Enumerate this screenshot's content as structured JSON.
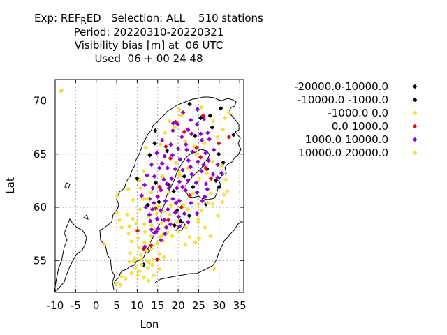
{
  "title": {
    "line1_pre": "Exp: REF",
    "line1_sub": "R",
    "line1_post": "ED   Selection: ALL    510 stations",
    "line2": "Period: 20220310-20220321",
    "line3": "Visibility bias [m] at  06 UTC",
    "line4": "Used  06 + 00 24 48"
  },
  "chart_data": {
    "type": "scatter",
    "title": "Visibility bias [m] at  06 UTC",
    "xlabel": "Lon",
    "ylabel": "Lat",
    "xlim": [
      -10,
      36
    ],
    "ylim": [
      52,
      72
    ],
    "xticks": [
      -10,
      -5,
      0,
      5,
      10,
      15,
      20,
      25,
      30,
      35
    ],
    "yticks": [
      55,
      60,
      65,
      70
    ],
    "xtick_labels": [
      "-10",
      "-5",
      "0",
      "5",
      "10",
      "15",
      "20",
      "25",
      "30",
      "35"
    ],
    "ytick_labels": [
      "55",
      "60",
      "65",
      "70"
    ],
    "grid": true,
    "legend_position": "right",
    "series": [
      {
        "name": "-20000.0-10000.0",
        "color": "#000000",
        "points": [
          [
            25.5,
            68.4
          ],
          [
            24.1,
            66.7
          ],
          [
            28.3,
            67.5
          ],
          [
            27.0,
            63.6
          ],
          [
            29.9,
            65.0
          ],
          [
            14.3,
            66.0
          ],
          [
            10.0,
            62.7
          ],
          [
            31.0,
            64.2
          ],
          [
            33.5,
            66.8
          ],
          [
            14.4,
            67.2
          ],
          [
            12.6,
            60.2
          ]
        ]
      },
      {
        "name": "-10000.0 -1000.0",
        "color": "#000000",
        "points": [
          [
            30.4,
            69.3
          ],
          [
            22.8,
            69.7
          ],
          [
            27.8,
            68.6
          ],
          [
            17.3,
            65.3
          ],
          [
            13.1,
            64.9
          ],
          [
            21.5,
            62.9
          ],
          [
            17.7,
            62.1
          ],
          [
            18.9,
            61.5
          ],
          [
            23.6,
            61.9
          ],
          [
            29.2,
            62.5
          ],
          [
            15.3,
            60.5
          ],
          [
            19.8,
            59.7
          ],
          [
            26.8,
            60.3
          ],
          [
            20.6,
            58.7
          ],
          [
            11.6,
            54.6
          ],
          [
            12.7,
            55.9
          ],
          [
            19.1,
            58.3
          ],
          [
            22.7,
            59.2
          ],
          [
            30.0,
            61.9
          ],
          [
            14.5,
            62.3
          ]
        ]
      },
      {
        "name": "-1000.0 0.0",
        "color": "#f0e040",
        "points": [
          [
            -8.6,
            70.9
          ],
          [
            -8.4,
            71.0
          ],
          [
            20.3,
            69.2
          ],
          [
            17.9,
            68.1
          ],
          [
            20.8,
            68.6
          ],
          [
            25.7,
            69.4
          ],
          [
            32.4,
            68.9
          ],
          [
            28.5,
            68.1
          ],
          [
            30.9,
            67.3
          ],
          [
            19.1,
            67.5
          ],
          [
            16.8,
            67.0
          ],
          [
            21.7,
            66.2
          ],
          [
            26.4,
            66.0
          ],
          [
            29.6,
            66.6
          ],
          [
            15.7,
            65.9
          ],
          [
            20.2,
            65.4
          ],
          [
            24.4,
            65.0
          ],
          [
            28.4,
            64.3
          ],
          [
            12.1,
            65.6
          ],
          [
            19.4,
            64.2
          ],
          [
            22.4,
            63.7
          ],
          [
            27.0,
            63.2
          ],
          [
            30.7,
            63.9
          ],
          [
            11.6,
            63.4
          ],
          [
            16.1,
            62.9
          ],
          [
            20.4,
            63.0
          ],
          [
            25.1,
            62.7
          ],
          [
            31.6,
            62.6
          ],
          [
            10.8,
            61.8
          ],
          [
            13.4,
            61.4
          ],
          [
            17.8,
            61.4
          ],
          [
            23.6,
            61.3
          ],
          [
            27.9,
            61.3
          ],
          [
            32.0,
            61.5
          ],
          [
            5.1,
            61.1
          ],
          [
            7.8,
            61.7
          ],
          [
            9.0,
            60.7
          ],
          [
            11.5,
            60.8
          ],
          [
            15.2,
            60.1
          ],
          [
            18.2,
            60.2
          ],
          [
            21.3,
            60.2
          ],
          [
            24.9,
            60.3
          ],
          [
            28.4,
            60.3
          ],
          [
            30.8,
            60.5
          ],
          [
            5.0,
            59.5
          ],
          [
            7.6,
            59.3
          ],
          [
            8.9,
            58.9
          ],
          [
            10.7,
            59.8
          ],
          [
            12.8,
            59.2
          ],
          [
            14.7,
            59.4
          ],
          [
            16.3,
            59.6
          ],
          [
            18.0,
            59.3
          ],
          [
            22.3,
            59.8
          ],
          [
            25.7,
            59.7
          ],
          [
            29.7,
            59.2
          ],
          [
            5.7,
            58.8
          ],
          [
            6.2,
            58.1
          ],
          [
            8.1,
            58.2
          ],
          [
            9.8,
            58.5
          ],
          [
            11.7,
            58.4
          ],
          [
            13.5,
            58.3
          ],
          [
            15.9,
            58.5
          ],
          [
            17.0,
            58.2
          ],
          [
            19.8,
            58.6
          ],
          [
            21.9,
            58.1
          ],
          [
            24.9,
            58.6
          ],
          [
            26.5,
            58.1
          ],
          [
            7.9,
            57.5
          ],
          [
            10.2,
            57.1
          ],
          [
            11.9,
            57.7
          ],
          [
            13.4,
            57.3
          ],
          [
            15.6,
            57.2
          ],
          [
            17.3,
            57.6
          ],
          [
            18.5,
            57.3
          ],
          [
            20.0,
            57.7
          ],
          [
            22.8,
            57.2
          ],
          [
            25.1,
            57.1
          ],
          [
            27.9,
            57.3
          ],
          [
            8.6,
            56.8
          ],
          [
            10.4,
            56.2
          ],
          [
            11.8,
            56.7
          ],
          [
            13.5,
            56.1
          ],
          [
            14.9,
            56.6
          ],
          [
            16.3,
            56.8
          ],
          [
            21.8,
            56.5
          ],
          [
            24.2,
            56.7
          ],
          [
            2.1,
            56.5
          ],
          [
            8.2,
            55.7
          ],
          [
            9.4,
            55.2
          ],
          [
            10.9,
            55.5
          ],
          [
            12.4,
            55.9
          ],
          [
            13.9,
            55.1
          ],
          [
            15.5,
            55.6
          ],
          [
            8.1,
            54.9
          ],
          [
            9.6,
            54.3
          ],
          [
            11.1,
            54.6
          ],
          [
            12.6,
            54.3
          ],
          [
            13.7,
            54.6
          ],
          [
            15.4,
            54.2
          ],
          [
            6.2,
            53.5
          ],
          [
            7.2,
            53.3
          ],
          [
            8.6,
            53.8
          ],
          [
            10.2,
            53.6
          ],
          [
            11.6,
            53.4
          ],
          [
            12.8,
            53.1
          ],
          [
            14.0,
            53.6
          ],
          [
            4.8,
            52.8
          ],
          [
            5.9,
            52.7
          ],
          [
            28.8,
            54.2
          ],
          [
            11.0,
            55.1
          ],
          [
            12.9,
            54.8
          ],
          [
            9.3,
            54.9
          ],
          [
            13.2,
            56.5
          ],
          [
            14.4,
            57.9
          ],
          [
            10.6,
            54.0
          ],
          [
            12.3,
            55.0
          ],
          [
            16.2,
            57.4
          ],
          [
            23.9,
            65.7
          ]
        ]
      },
      {
        "name": "0.0 1000.0",
        "color": "#e01000",
        "points": [
          [
            19.4,
            68.0
          ],
          [
            24.5,
            65.6
          ],
          [
            25.5,
            64.7
          ],
          [
            21.5,
            67.1
          ],
          [
            26.1,
            68.6
          ],
          [
            29.9,
            66.0
          ],
          [
            32.4,
            66.6
          ],
          [
            17.0,
            65.7
          ],
          [
            28.0,
            62.7
          ],
          [
            15.5,
            61.9
          ],
          [
            22.8,
            61.1
          ],
          [
            14.5,
            59.9
          ],
          [
            20.8,
            60.0
          ],
          [
            17.6,
            58.8
          ],
          [
            10.1,
            57.8
          ],
          [
            13.4,
            56.4
          ],
          [
            14.9,
            55.1
          ],
          [
            18.1,
            64.6
          ],
          [
            11.6,
            56.1
          ],
          [
            26.7,
            63.7
          ]
        ]
      },
      {
        "name": "1000.0 10000.0",
        "color": "#9400d3",
        "points": [
          [
            21.2,
            68.9
          ],
          [
            23.1,
            68.2
          ],
          [
            24.7,
            69.2
          ],
          [
            26.3,
            68.3
          ],
          [
            19.9,
            67.8
          ],
          [
            22.4,
            67.3
          ],
          [
            24.6,
            67.8
          ],
          [
            27.2,
            67.0
          ],
          [
            18.7,
            67.2
          ],
          [
            20.9,
            66.6
          ],
          [
            23.3,
            66.9
          ],
          [
            25.8,
            66.3
          ],
          [
            16.1,
            66.3
          ],
          [
            18.2,
            65.9
          ],
          [
            20.0,
            65.5
          ],
          [
            21.9,
            65.9
          ],
          [
            23.5,
            65.2
          ],
          [
            26.7,
            65.1
          ],
          [
            14.8,
            65.1
          ],
          [
            16.7,
            64.8
          ],
          [
            18.6,
            64.9
          ],
          [
            20.5,
            64.5
          ],
          [
            22.5,
            64.4
          ],
          [
            24.8,
            64.3
          ],
          [
            27.4,
            64.4
          ],
          [
            29.6,
            64.0
          ],
          [
            13.5,
            64.0
          ],
          [
            15.4,
            63.7
          ],
          [
            17.4,
            63.7
          ],
          [
            19.3,
            63.6
          ],
          [
            21.1,
            63.5
          ],
          [
            23.3,
            63.1
          ],
          [
            25.7,
            63.4
          ],
          [
            28.5,
            63.1
          ],
          [
            30.6,
            63.2
          ],
          [
            12.4,
            63.0
          ],
          [
            14.2,
            62.9
          ],
          [
            16.5,
            62.6
          ],
          [
            18.4,
            62.7
          ],
          [
            20.3,
            62.4
          ],
          [
            22.4,
            62.5
          ],
          [
            24.4,
            62.3
          ],
          [
            26.8,
            62.2
          ],
          [
            29.6,
            62.8
          ],
          [
            11.8,
            62.1
          ],
          [
            13.8,
            61.8
          ],
          [
            15.8,
            61.6
          ],
          [
            17.7,
            61.8
          ],
          [
            19.7,
            61.8
          ],
          [
            21.8,
            61.6
          ],
          [
            24.6,
            61.4
          ],
          [
            26.5,
            61.0
          ],
          [
            11.1,
            61.1
          ],
          [
            13.0,
            60.8
          ],
          [
            15.0,
            61.0
          ],
          [
            16.9,
            60.6
          ],
          [
            18.7,
            60.8
          ],
          [
            20.3,
            60.6
          ],
          [
            23.1,
            60.4
          ],
          [
            25.9,
            60.6
          ],
          [
            27.1,
            61.7
          ],
          [
            12.1,
            60.0
          ],
          [
            13.7,
            59.8
          ],
          [
            15.7,
            59.7
          ],
          [
            17.5,
            59.8
          ],
          [
            19.3,
            59.5
          ],
          [
            21.5,
            59.4
          ],
          [
            24.6,
            59.4
          ],
          [
            13.0,
            59.3
          ],
          [
            14.9,
            58.9
          ],
          [
            16.6,
            58.8
          ],
          [
            18.1,
            58.4
          ],
          [
            20.3,
            58.2
          ],
          [
            22.4,
            58.6
          ],
          [
            13.2,
            58.7
          ],
          [
            15.1,
            58.0
          ],
          [
            17.1,
            58.1
          ],
          [
            14.7,
            57.7
          ],
          [
            16.8,
            57.5
          ],
          [
            15.8,
            56.9
          ],
          [
            11.9,
            56.3
          ],
          [
            18.8,
            67.9
          ],
          [
            17.2,
            62.2
          ],
          [
            19.5,
            60.4
          ],
          [
            14.2,
            57.6
          ],
          [
            28.7,
            65.4
          ],
          [
            16.1,
            64.1
          ],
          [
            22.1,
            65.4
          ],
          [
            25.5,
            66.9
          ],
          [
            20.1,
            59.1
          ],
          [
            27.6,
            66.4
          ],
          [
            21.1,
            61.9
          ],
          [
            13.5,
            57.9
          ],
          [
            14.1,
            60.4
          ],
          [
            23.0,
            63.8
          ],
          [
            26.2,
            64.0
          ]
        ]
      },
      {
        "name": "10000.0 20000.0",
        "color": "#f0e040",
        "points": [
          [
            31.4,
            68.4
          ],
          [
            10.6,
            62.5
          ],
          [
            27.2,
            60.4
          ],
          [
            20.3,
            63.3
          ],
          [
            24.9,
            58.9
          ],
          [
            16.5,
            55.3
          ],
          [
            12.4,
            60.8
          ],
          [
            31.2,
            61.2
          ]
        ]
      }
    ]
  }
}
